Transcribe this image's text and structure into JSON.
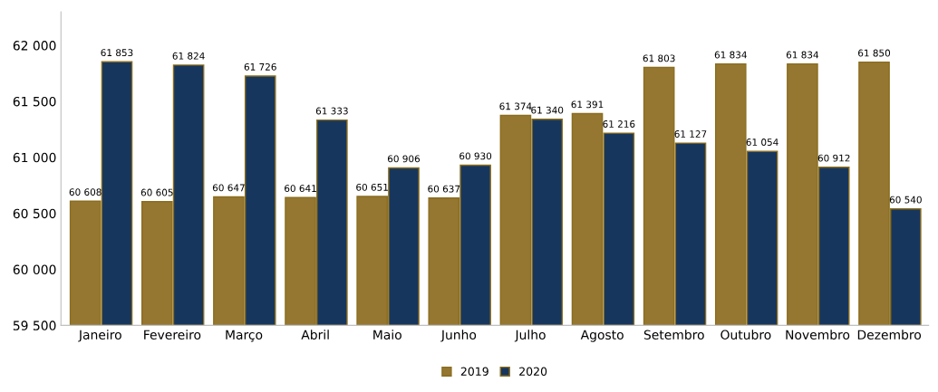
{
  "chart_data": {
    "type": "bar",
    "categories": [
      "Janeiro",
      "Fevereiro",
      "Março",
      "Abril",
      "Maio",
      "Junho",
      "Julho",
      "Agosto",
      "Setembro",
      "Outubro",
      "Novembro",
      "Dezembro"
    ],
    "series": [
      {
        "name": "2019",
        "color": "#957731",
        "values": [
          60608,
          60605,
          60647,
          60641,
          60651,
          60637,
          61374,
          61391,
          61803,
          61834,
          61834,
          61850
        ],
        "value_labels": [
          "60 608",
          "60 605",
          "60 647",
          "60 641",
          "60 651",
          "60 637",
          "61 374",
          "61 391",
          "61 803",
          "61 834",
          "61 834",
          "61 850"
        ]
      },
      {
        "name": "2020",
        "color": "#17365d",
        "values": [
          61853,
          61824,
          61726,
          61333,
          60906,
          60930,
          61340,
          61216,
          61127,
          61054,
          60912,
          60540
        ],
        "value_labels": [
          "61 853",
          "61 824",
          "61 726",
          "61 333",
          "60 906",
          "60 930",
          "61 340",
          "61 216",
          "61 127",
          "61 054",
          "60 912",
          "60 540"
        ]
      }
    ],
    "ylim": [
      59500,
      62300
    ],
    "yticks": [
      {
        "value": 59500,
        "label": "59 500"
      },
      {
        "value": 60000,
        "label": "60 000"
      },
      {
        "value": 60500,
        "label": "60 500"
      },
      {
        "value": 61000,
        "label": "61 000"
      },
      {
        "value": 61500,
        "label": "61 500"
      },
      {
        "value": 62000,
        "label": "62 000"
      }
    ],
    "legend": "bottom",
    "grid": false
  }
}
